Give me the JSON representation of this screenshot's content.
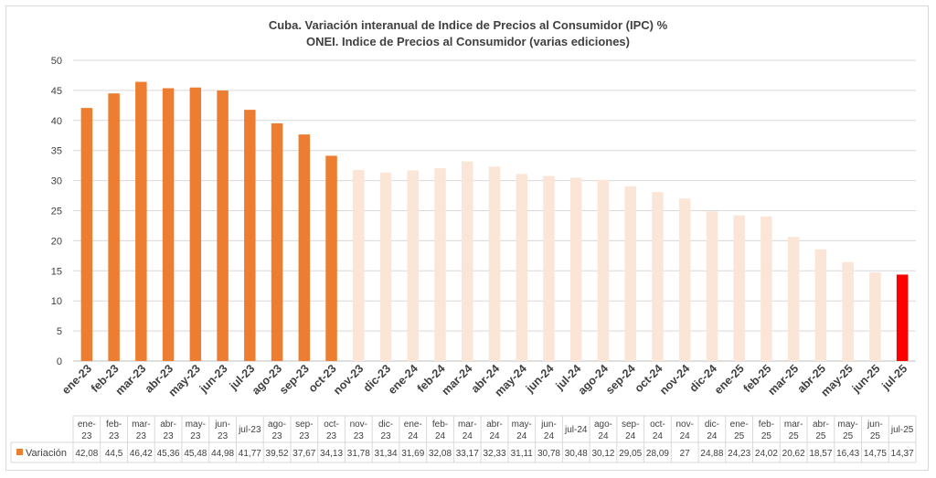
{
  "chart_data": {
    "type": "bar",
    "title": "Cuba. Variación interanual de Indice de Precios al Consumidor (IPC) %",
    "subtitle": "ONEI. Indice de Precios al Consumidor (varias ediciones)",
    "categories": [
      "ene-23",
      "feb-23",
      "mar-23",
      "abr-23",
      "may-23",
      "jun-23",
      "jul-23",
      "ago-23",
      "sep-23",
      "oct-23",
      "nov-23",
      "dic-23",
      "ene-24",
      "feb-24",
      "mar-24",
      "abr-24",
      "may-24",
      "jun-24",
      "jul-24",
      "ago-24",
      "sep-24",
      "oct-24",
      "nov-24",
      "dic-24",
      "ene-25",
      "feb-25",
      "mar-25",
      "abr-25",
      "may-25",
      "jun-25",
      "jul-25"
    ],
    "table_top": [
      "ene-",
      "feb-",
      "mar-",
      "abr-",
      "may-",
      "jun-",
      "jul-23",
      "ago-",
      "sep-",
      "oct-",
      "nov-",
      "dic-",
      "ene-",
      "feb-",
      "mar-",
      "abr-",
      "may-",
      "jun-",
      "jul-24",
      "ago-",
      "sep-",
      "oct-",
      "nov-",
      "dic-",
      "ene-",
      "feb-",
      "mar-",
      "abr-",
      "may-",
      "jun-",
      "jul-25"
    ],
    "table_bottom": [
      "23",
      "23",
      "23",
      "23",
      "23",
      "23",
      "",
      "23",
      "23",
      "23",
      "23",
      "23",
      "24",
      "24",
      "24",
      "24",
      "24",
      "24",
      "",
      "24",
      "24",
      "24",
      "24",
      "24",
      "25",
      "25",
      "25",
      "25",
      "25",
      "25",
      ""
    ],
    "value_labels": [
      "42,08",
      "44,5",
      "46,42",
      "45,36",
      "45,48",
      "44,98",
      "41,77",
      "39,52",
      "37,67",
      "34,13",
      "31,78",
      "31,34",
      "31,69",
      "32,08",
      "33,17",
      "32,33",
      "31,11",
      "30,78",
      "30,48",
      "30,12",
      "29,05",
      "28,09",
      "27",
      "24,88",
      "24,23",
      "24,02",
      "20,62",
      "18,57",
      "16,43",
      "14,75",
      "14,37"
    ],
    "series": [
      {
        "name": "Variación",
        "values": [
          42.08,
          44.5,
          46.42,
          45.36,
          45.48,
          44.98,
          41.77,
          39.52,
          37.67,
          34.13,
          31.78,
          31.34,
          31.69,
          32.08,
          33.17,
          32.33,
          31.11,
          30.78,
          30.48,
          30.12,
          29.05,
          28.09,
          27,
          24.88,
          24.23,
          24.02,
          20.62,
          18.57,
          16.43,
          14.75,
          14.37
        ]
      }
    ],
    "ylim": [
      0,
      50
    ],
    "yticks": [
      "0",
      "5",
      "10",
      "15",
      "20",
      "25",
      "30",
      "35",
      "40",
      "45",
      "50"
    ],
    "grid": true,
    "legend": "bottom-left (data table)",
    "colors": {
      "strong": "#ed7d31",
      "light": "#fbe5d6",
      "last": "#ff0000",
      "grid": "#d9d9d9",
      "text": "#404040"
    },
    "strong_count": 10
  }
}
